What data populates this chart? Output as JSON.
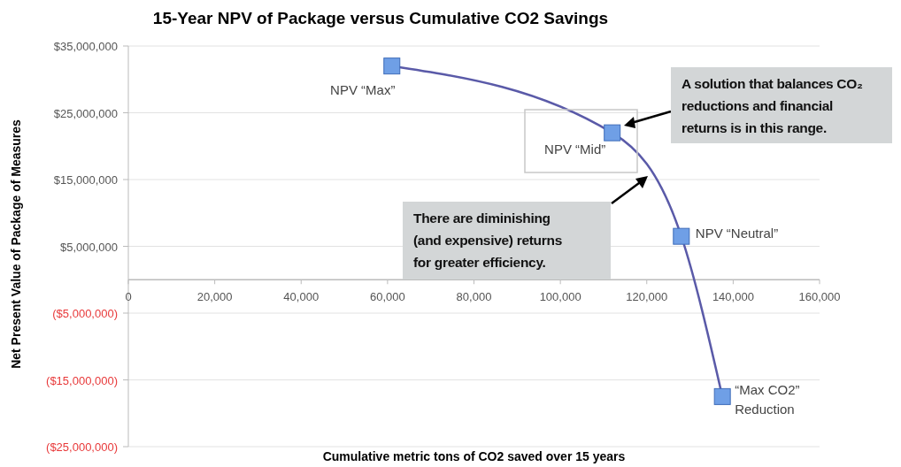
{
  "chart_data": {
    "type": "line",
    "title": "15-Year NPV of Package versus Cumulative CO2 Savings",
    "xlabel": "Cumulative metric tons of CO2 saved over 15 years",
    "ylabel": "Net Present Value of Package of Measures",
    "x": [
      61000,
      112000,
      128000,
      137500
    ],
    "series": [
      {
        "color": "#5a5aa8",
        "values": [
          32000000,
          22000000,
          6500000,
          -17500000
        ]
      }
    ],
    "xlim": [
      0,
      160000
    ],
    "xticks": [
      0,
      {
        "value": 20000,
        "label": "20,000"
      },
      {
        "value": 40000,
        "label": "40,000"
      },
      {
        "value": 60000,
        "label": "60,000"
      },
      {
        "value": 80000,
        "label": "80,000"
      },
      {
        "value": 100000,
        "label": "100,000"
      },
      {
        "value": 120000,
        "label": "120,000"
      },
      {
        "value": 140000,
        "label": "140,000"
      },
      {
        "value": 160000,
        "label": "160,000"
      }
    ],
    "ylim": [
      -25000000,
      35000000
    ],
    "yticks": [
      {
        "value": -25000000,
        "label": "($25,000,000)"
      },
      {
        "value": -15000000,
        "label": "($15,000,000)"
      },
      {
        "value": -5000000,
        "label": "($5,000,000)"
      },
      {
        "value": 5000000,
        "label": "$5,000,000"
      },
      {
        "value": 15000000,
        "label": "$15,000,000"
      },
      {
        "value": 25000000,
        "label": "$25,000,000"
      },
      {
        "value": 35000000,
        "label": "$35,000,000"
      }
    ],
    "grid": "y",
    "marker": "square",
    "line_style": "solid",
    "annotations": [
      {
        "text": "NPV “Max”",
        "x": 61000,
        "y": 32000000
      },
      {
        "text": "NPV “Mid”",
        "x": 112000,
        "y": 22000000
      },
      {
        "text": "NPV “Neutral”",
        "x": 128000,
        "y": 6500000
      },
      {
        "text": "“Max CO2”\nReduction",
        "x": 137500,
        "y": -17500000
      },
      "A solution that balances CO₂ reductions and financial returns is in this range.",
      "There are diminishing (and expensive) returns for greater efficiency."
    ]
  }
}
